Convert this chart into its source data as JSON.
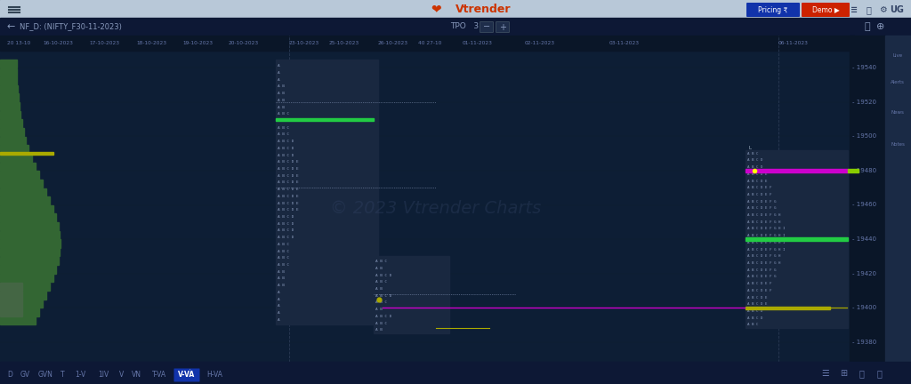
{
  "bg_color": "#0a1628",
  "top_nav_color": "#b8c8d8",
  "toolbar_color": "#0d1e35",
  "title": "NF_D: (NIFTY_F30-11-2023)",
  "watermark": "© 2023 Vtrender Charts",
  "price_axis": [
    19380,
    19400,
    19420,
    19440,
    19460,
    19480,
    19500,
    19520,
    19540
  ],
  "price_min": 19370,
  "price_max": 19550,
  "date_labels": [
    "20 13-10",
    "16-10-2023",
    "17-10-2023",
    "18-10-2023",
    "19-10-2023",
    "20-10-2023",
    "23-10-2023",
    "25-10-2023",
    "26-10-2023",
    "40 27-10",
    "01-11-2023",
    "02-11-2023",
    "03-11-2023",
    "06-11-2023"
  ],
  "date_x": [
    8,
    48,
    100,
    153,
    205,
    257,
    325,
    370,
    425,
    470,
    520,
    590,
    685,
    875
  ],
  "tpo_color": "#8899bb",
  "tpo_text_color": "#aabbcc",
  "profile_bg": "#1e2d4a",
  "chart_bg": "#0d1e35",
  "sidebar_color": "#1a2a45",
  "bottom_bar_color": "#1a2a45",
  "green_color": "#22cc44",
  "yellow_color": "#aaaa00",
  "magenta_color": "#cc00cc",
  "cyan_color": "#00cccc",
  "lime_color": "#88cc00",
  "bottom_tabs": [
    "D",
    "GV",
    "GVN",
    "T",
    "1-V",
    "1IV",
    "V",
    "VN",
    "T-VA",
    "V-VA",
    "H-VA"
  ],
  "active_tab": "V-VA"
}
